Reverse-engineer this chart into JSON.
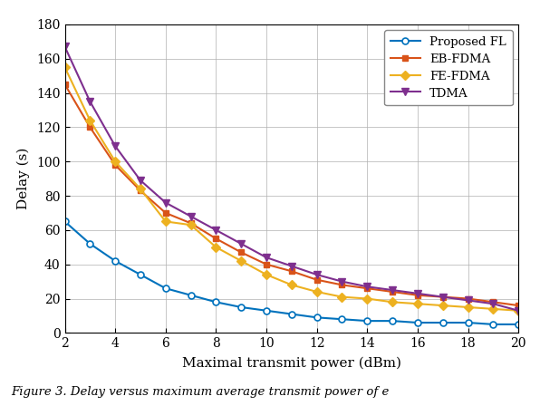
{
  "x": [
    2,
    3,
    4,
    5,
    6,
    7,
    8,
    9,
    10,
    11,
    12,
    13,
    14,
    15,
    16,
    17,
    18,
    19,
    20
  ],
  "proposed_fl": [
    65,
    52,
    42,
    34,
    26,
    22,
    18,
    15,
    13,
    11,
    9,
    8,
    7,
    7,
    6,
    6,
    6,
    5,
    5
  ],
  "eb_fdma": [
    145,
    120,
    98,
    83,
    70,
    64,
    55,
    47,
    40,
    36,
    31,
    28,
    26,
    24,
    22,
    21,
    20,
    18,
    16
  ],
  "fe_fdma": [
    155,
    124,
    100,
    84,
    65,
    63,
    50,
    42,
    34,
    28,
    24,
    21,
    20,
    18,
    17,
    16,
    15,
    14,
    13
  ],
  "tdma": [
    167,
    135,
    109,
    89,
    76,
    68,
    60,
    52,
    44,
    39,
    34,
    30,
    27,
    25,
    23,
    21,
    19,
    17,
    13
  ],
  "proposed_fl_color": "#0072BD",
  "eb_fdma_color": "#D95319",
  "fe_fdma_color": "#EDB120",
  "tdma_color": "#7E2F8E",
  "xlabel": "Maximal transmit power (dBm)",
  "ylabel": "Delay (s)",
  "ylim": [
    0,
    180
  ],
  "xlim": [
    2,
    20
  ],
  "yticks": [
    0,
    20,
    40,
    60,
    80,
    100,
    120,
    140,
    160,
    180
  ],
  "xticks": [
    2,
    4,
    6,
    8,
    10,
    12,
    14,
    16,
    18,
    20
  ],
  "legend_labels": [
    "Proposed FL",
    "EB-FDMA",
    "FE-FDMA",
    "TDMA"
  ],
  "caption": "Figure 3. Delay versus maximum average transmit power of e",
  "fig_width": 5.96,
  "fig_height": 4.48,
  "bg_color": "#FFFFFF",
  "grid_color": "#b0b0b0"
}
